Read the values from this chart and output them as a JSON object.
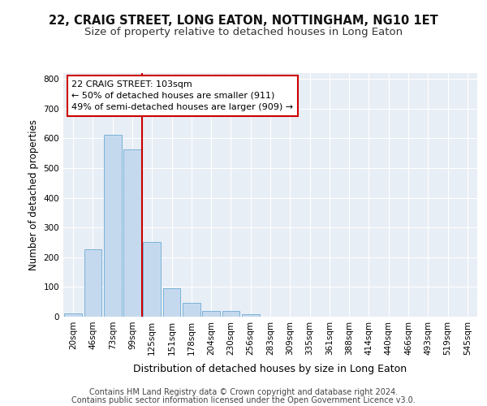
{
  "title1": "22, CRAIG STREET, LONG EATON, NOTTINGHAM, NG10 1ET",
  "title2": "Size of property relative to detached houses in Long Eaton",
  "xlabel": "Distribution of detached houses by size in Long Eaton",
  "ylabel": "Number of detached properties",
  "categories": [
    "20sqm",
    "46sqm",
    "73sqm",
    "99sqm",
    "125sqm",
    "151sqm",
    "178sqm",
    "204sqm",
    "230sqm",
    "256sqm",
    "283sqm",
    "309sqm",
    "335sqm",
    "361sqm",
    "388sqm",
    "414sqm",
    "440sqm",
    "466sqm",
    "493sqm",
    "519sqm",
    "545sqm"
  ],
  "values": [
    10,
    228,
    612,
    564,
    252,
    95,
    46,
    20,
    20,
    8,
    0,
    0,
    0,
    0,
    0,
    0,
    0,
    0,
    0,
    0,
    0
  ],
  "bar_color": "#c5d9ee",
  "bar_edge_color": "#6aaad4",
  "vline_color": "#cc0000",
  "annotation_text": "22 CRAIG STREET: 103sqm\n← 50% of detached houses are smaller (911)\n49% of semi-detached houses are larger (909) →",
  "annotation_box_color": "#cc0000",
  "ylim": [
    0,
    820
  ],
  "yticks": [
    0,
    100,
    200,
    300,
    400,
    500,
    600,
    700,
    800
  ],
  "bg_color": "#e8eef5",
  "grid_color": "#ffffff",
  "footer_line1": "Contains HM Land Registry data © Crown copyright and database right 2024.",
  "footer_line2": "Contains public sector information licensed under the Open Government Licence v3.0.",
  "title1_fontsize": 10.5,
  "title2_fontsize": 9.5,
  "xlabel_fontsize": 9,
  "ylabel_fontsize": 8.5,
  "annotation_fontsize": 8,
  "tick_fontsize": 7.5,
  "footer_fontsize": 7
}
